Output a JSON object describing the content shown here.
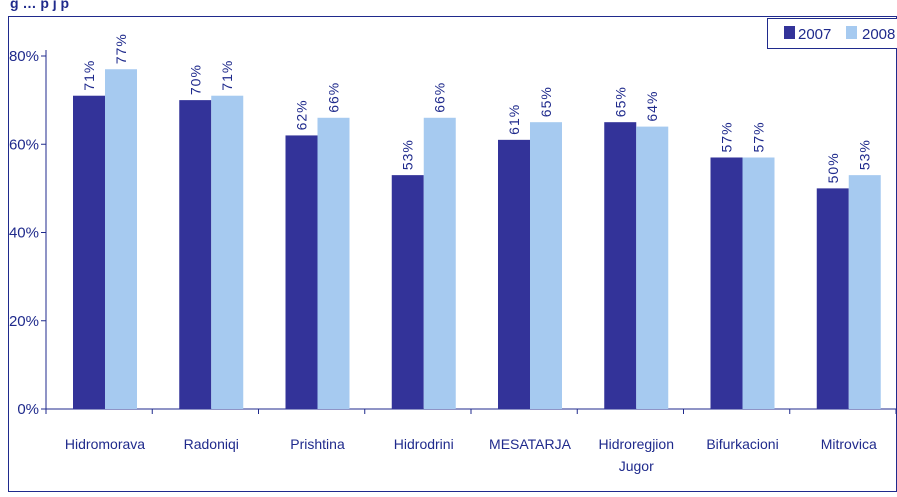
{
  "chart_data": {
    "type": "bar",
    "title": "",
    "xlabel": "",
    "ylabel": "",
    "categories": [
      [
        "Hidromorava"
      ],
      [
        "Radoniqi"
      ],
      [
        "Prishtina"
      ],
      [
        "Hidrodrini"
      ],
      [
        "MESATARJA"
      ],
      [
        "Hidroregjion",
        "Jugor"
      ],
      [
        "Bifurkacioni"
      ],
      [
        "Mitrovica"
      ]
    ],
    "series": [
      {
        "name": "2007",
        "color": "#333399",
        "values": [
          71,
          70,
          62,
          53,
          61,
          65,
          57,
          50
        ],
        "labels": [
          "71%",
          "70%",
          "62%",
          "53%",
          "61%",
          "65%",
          "57%",
          "50%"
        ]
      },
      {
        "name": "2008",
        "color": "#a6caf0",
        "values": [
          77,
          71,
          66,
          66,
          65,
          64,
          57,
          53
        ],
        "labels": [
          "77%",
          "71%",
          "66%",
          "66%",
          "65%",
          "64%",
          "57%",
          "53%"
        ]
      }
    ],
    "ylim": [
      0,
      80
    ],
    "yticks": [
      0,
      20,
      40,
      60,
      80
    ],
    "ytick_labels": [
      "0%",
      "20%",
      "40%",
      "60%",
      "80%"
    ],
    "grid": false,
    "legend": "top-right",
    "cropped_title_fragment": "g      …      p   j                  p"
  },
  "colors": {
    "text": "#1f2a8c",
    "frame": "#1f2a8c",
    "background": "#ffffff"
  }
}
